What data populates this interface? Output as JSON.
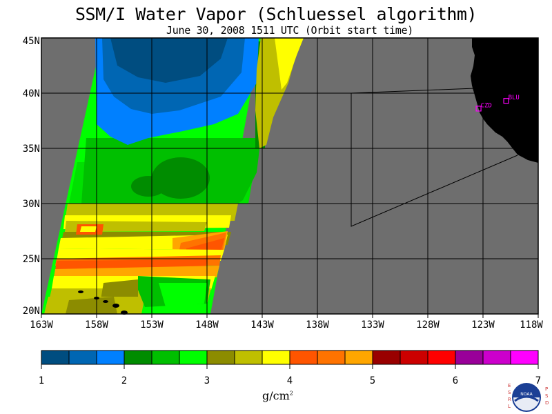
{
  "title": "SSM/I Water Vapor (Schluessel algorithm)",
  "subtitle": "June 30, 2008  1511 UTC  (Orbit start time)",
  "colors": {
    "land": "#000000",
    "no_data": "#6e6e6e",
    "grid": "#000000",
    "station": "#ff00ff"
  },
  "stations": [
    {
      "code": "CZD",
      "lon": -123.4,
      "lat": 38.6
    },
    {
      "code": "BLU",
      "lon": -120.9,
      "lat": 39.3
    }
  ],
  "axes": {
    "x_ticks": [
      "163W",
      "158W",
      "153W",
      "148W",
      "143W",
      "138W",
      "133W",
      "128W",
      "123W",
      "118W"
    ],
    "y_ticks": [
      "45N",
      "40N",
      "35N",
      "30N",
      "25N",
      "20N"
    ],
    "lon_range": [
      -163,
      -118
    ],
    "lat_range": [
      20,
      45
    ]
  },
  "colorbar": {
    "units_text": "g/cm",
    "units_exp": "2",
    "tick_labels": [
      "1",
      "2",
      "3",
      "4",
      "5",
      "6",
      "7"
    ],
    "colors": [
      "#004d80",
      "#0066b3",
      "#0080ff",
      "#008c00",
      "#00bf00",
      "#00ff00",
      "#8c8c00",
      "#bfbf00",
      "#ffff00",
      "#ff5500",
      "#ff7300",
      "#ffa600",
      "#990000",
      "#cc0000",
      "#ff0000",
      "#990099",
      "#cc00cc",
      "#ff00ff"
    ]
  },
  "logo": {
    "left_letters": [
      "E",
      "S",
      "R",
      "L"
    ],
    "right_letters": [
      "P",
      "S",
      "D"
    ],
    "center": "NOAA"
  }
}
